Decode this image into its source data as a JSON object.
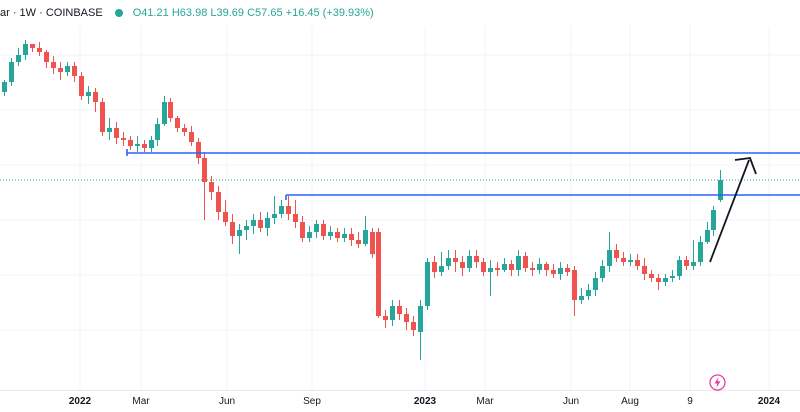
{
  "header": {
    "symbol_text": "ar · 1W · COINBASE",
    "open": "O41.21",
    "high": "H63.98",
    "low": "L39.69",
    "close": "C57.65",
    "change": "+16.45 (+39.93%)",
    "up_color": "#26a69a"
  },
  "x_axis": {
    "ticks": [
      {
        "label": "2022",
        "bold": true
      },
      {
        "label": "Mar",
        "bold": false
      },
      {
        "label": "Jun",
        "bold": false
      },
      {
        "label": "Sep",
        "bold": false
      },
      {
        "label": "2023",
        "bold": true
      },
      {
        "label": "Mar",
        "bold": false
      },
      {
        "label": "Jun",
        "bold": false
      },
      {
        "label": "Aug",
        "bold": false
      },
      {
        "label": "9",
        "bold": false
      },
      {
        "label": "2024",
        "bold": true
      }
    ]
  },
  "colors": {
    "up": "#26a69a",
    "down": "#ef5350",
    "line": "#2962ff",
    "grid": "#f0f3fa"
  },
  "icons": {
    "flash": "lightning-icon"
  },
  "chart_data": {
    "type": "candlestick",
    "interval": "1W",
    "x": [
      "2022-01",
      "2022-03",
      "2022-06",
      "2022-09",
      "2023-01",
      "2023-03",
      "2023-06",
      "2023-08",
      "2023-10",
      "2024-01"
    ],
    "last": {
      "open": 41.21,
      "high": 63.98,
      "low": 39.69,
      "close": 57.65,
      "change": 16.45,
      "change_pct": 39.93
    }
  }
}
